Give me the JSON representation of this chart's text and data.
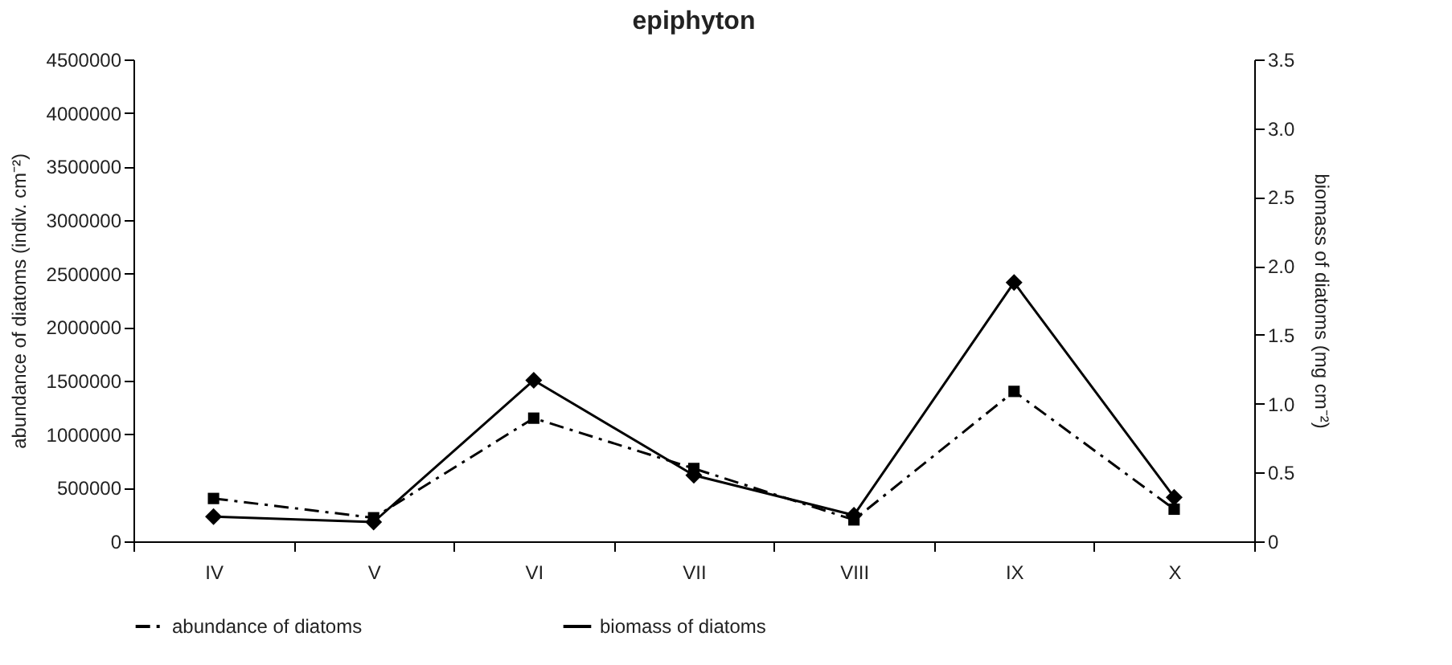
{
  "chart_data": {
    "type": "line",
    "title": "epiphyton",
    "categories": [
      "IV",
      "V",
      "VI",
      "VII",
      "VIII",
      "IX",
      "X"
    ],
    "xlabel": null,
    "ylabel": "abundance of diatoms (indiv. cm⁻²)",
    "y2label": "biomass of diatoms (mg cm⁻²)",
    "ylim": [
      0,
      4500000
    ],
    "yticks": [
      0,
      500000,
      1000000,
      1500000,
      2000000,
      2500000,
      3000000,
      3500000,
      4000000,
      4500000
    ],
    "y2lim": [
      0,
      3.5
    ],
    "y2ticks": [
      {
        "value": 0,
        "label": "0"
      },
      {
        "value": 0.5,
        "label": "0.5"
      },
      {
        "value": 1,
        "label": "1.0"
      },
      {
        "value": 1.5,
        "label": "1.5"
      },
      {
        "value": 2,
        "label": "2.0"
      },
      {
        "value": 2.5,
        "label": "2.5"
      },
      {
        "value": 3,
        "label": "3.0"
      },
      {
        "value": 3.5,
        "label": "3.5"
      }
    ],
    "grid": false,
    "legend": "bottom",
    "series": [
      {
        "name": "abundance of diatoms",
        "color": "#000000",
        "marker": "square",
        "line_style": "dashed",
        "values": [
          400000,
          220000,
          1150000,
          680000,
          200000,
          1400000,
          300000
        ]
      },
      {
        "name": "biomass of diatoms",
        "color": "#000000",
        "marker": "diamond",
        "line_style": "solid",
        "axis": "y2",
        "values": [
          0.18,
          0.14,
          1.17,
          0.48,
          0.19,
          1.88,
          0.32
        ]
      }
    ]
  }
}
